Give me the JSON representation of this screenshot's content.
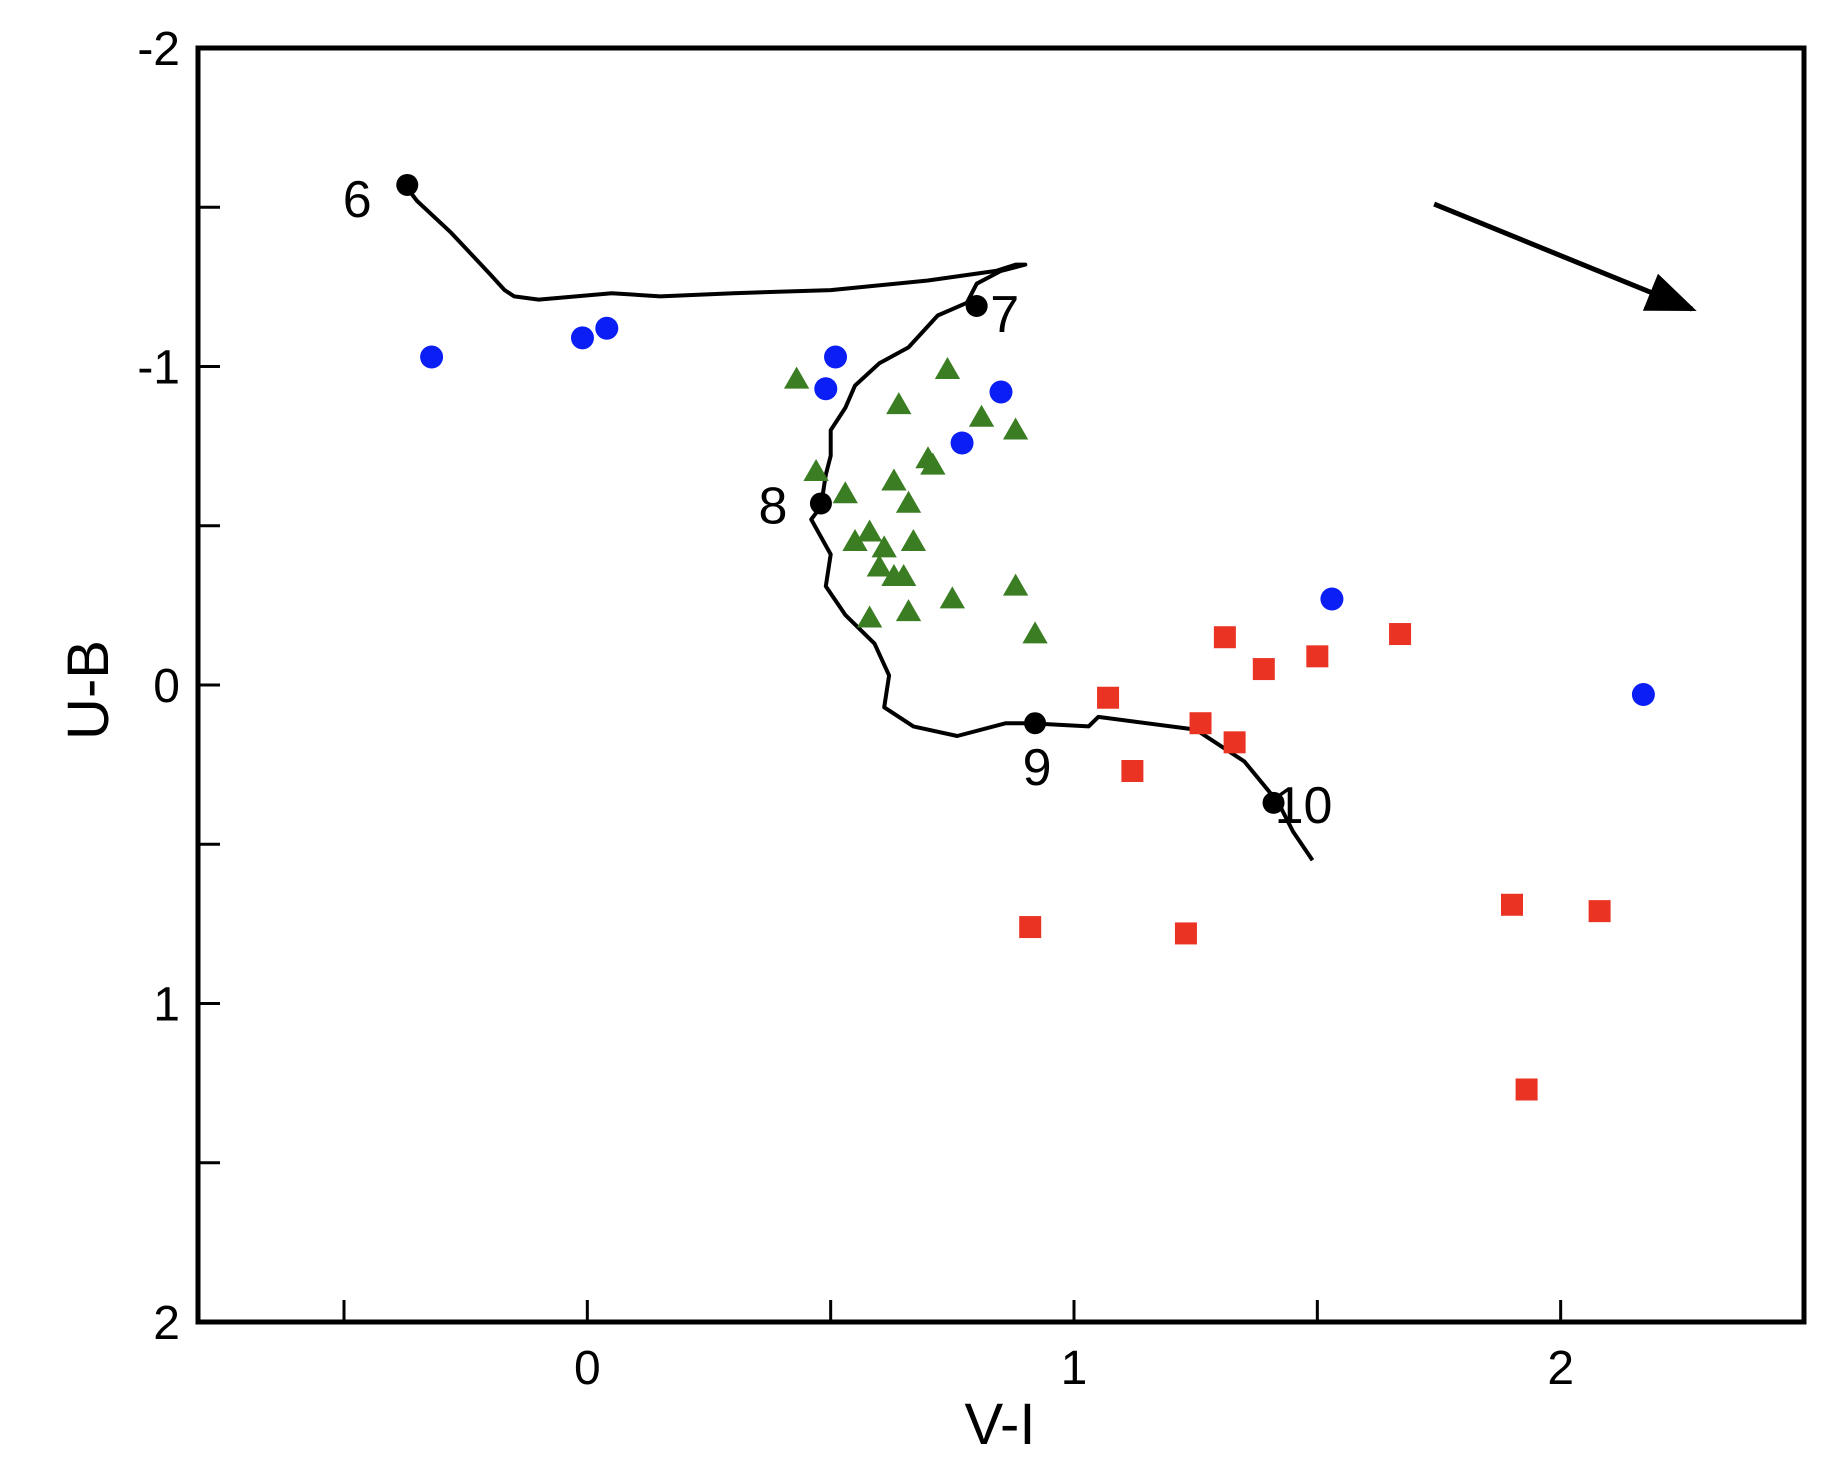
{
  "chart_data": {
    "type": "scatter",
    "xlabel": "V-I",
    "ylabel": "U-B",
    "xlim": [
      -0.8,
      2.5
    ],
    "ylim": [
      2,
      -2
    ],
    "y_inverted": true,
    "x_ticks": [
      -0.5,
      0,
      0.5,
      1,
      1.5,
      2
    ],
    "x_tick_labels": [
      "0",
      "1",
      "2"
    ],
    "x_tick_label_values": [
      0,
      1,
      2
    ],
    "y_ticks": [
      -2,
      -1.5,
      -1,
      -0.5,
      0,
      0.5,
      1,
      1.5,
      2
    ],
    "y_tick_labels": [
      "-2",
      "-1",
      "0",
      "1",
      "2"
    ],
    "y_tick_label_values": [
      -2,
      -1,
      0,
      1,
      2
    ],
    "grid": false,
    "legend": "none",
    "colors": {
      "blue_circles": "#0a1ef5",
      "green_triangles": "#3a7d22",
      "red_squares": "#ea3323",
      "track": "#000000"
    },
    "series": [
      {
        "marker": "circle",
        "color": "#0a1ef5",
        "points": [
          [
            -0.32,
            -1.03
          ],
          [
            -0.01,
            -1.09
          ],
          [
            0.04,
            -1.12
          ],
          [
            0.51,
            -1.03
          ],
          [
            0.49,
            -0.93
          ],
          [
            0.85,
            -0.92
          ],
          [
            0.77,
            -0.76
          ],
          [
            1.53,
            -0.27
          ],
          [
            2.17,
            0.03
          ]
        ]
      },
      {
        "marker": "triangle",
        "color": "#3a7d22",
        "points": [
          [
            0.43,
            -0.96
          ],
          [
            0.74,
            -0.99
          ],
          [
            0.64,
            -0.88
          ],
          [
            0.81,
            -0.84
          ],
          [
            0.88,
            -0.8
          ],
          [
            0.7,
            -0.71
          ],
          [
            0.71,
            -0.69
          ],
          [
            0.47,
            -0.67
          ],
          [
            0.63,
            -0.64
          ],
          [
            0.53,
            -0.6
          ],
          [
            0.66,
            -0.57
          ],
          [
            0.58,
            -0.48
          ],
          [
            0.55,
            -0.45
          ],
          [
            0.61,
            -0.43
          ],
          [
            0.67,
            -0.45
          ],
          [
            0.6,
            -0.37
          ],
          [
            0.63,
            -0.34
          ],
          [
            0.65,
            -0.34
          ],
          [
            0.88,
            -0.31
          ],
          [
            0.75,
            -0.27
          ],
          [
            0.66,
            -0.23
          ],
          [
            0.58,
            -0.21
          ],
          [
            0.92,
            -0.16
          ]
        ]
      },
      {
        "marker": "square",
        "color": "#ea3323",
        "points": [
          [
            1.31,
            -0.15
          ],
          [
            1.67,
            -0.16
          ],
          [
            1.5,
            -0.09
          ],
          [
            1.39,
            -0.05
          ],
          [
            1.07,
            0.04
          ],
          [
            1.26,
            0.12
          ],
          [
            1.33,
            0.18
          ],
          [
            1.12,
            0.27
          ],
          [
            0.91,
            0.76
          ],
          [
            1.23,
            0.78
          ],
          [
            1.9,
            0.69
          ],
          [
            2.08,
            0.71
          ],
          [
            1.93,
            1.27
          ]
        ]
      }
    ],
    "track": {
      "points": [
        [
          -0.38,
          -1.58
        ],
        [
          -0.35,
          -1.52
        ],
        [
          -0.28,
          -1.42
        ],
        [
          -0.2,
          -1.29
        ],
        [
          -0.17,
          -1.24
        ],
        [
          -0.15,
          -1.22
        ],
        [
          -0.1,
          -1.21
        ],
        [
          0.05,
          -1.23
        ],
        [
          0.15,
          -1.22
        ],
        [
          0.3,
          -1.23
        ],
        [
          0.5,
          -1.24
        ],
        [
          0.7,
          -1.27
        ],
        [
          0.84,
          -1.3
        ],
        [
          0.88,
          -1.32
        ],
        [
          0.9,
          -1.32
        ],
        [
          0.85,
          -1.3
        ],
        [
          0.8,
          -1.26
        ],
        [
          0.78,
          -1.2
        ],
        [
          0.72,
          -1.16
        ],
        [
          0.66,
          -1.06
        ],
        [
          0.6,
          -1.01
        ],
        [
          0.55,
          -0.94
        ],
        [
          0.53,
          -0.87
        ],
        [
          0.5,
          -0.8
        ],
        [
          0.5,
          -0.72
        ],
        [
          0.49,
          -0.66
        ],
        [
          0.48,
          -0.56
        ],
        [
          0.46,
          -0.52
        ],
        [
          0.5,
          -0.41
        ],
        [
          0.49,
          -0.31
        ],
        [
          0.53,
          -0.22
        ],
        [
          0.59,
          -0.13
        ],
        [
          0.62,
          -0.03
        ],
        [
          0.61,
          0.07
        ],
        [
          0.67,
          0.13
        ],
        [
          0.76,
          0.16
        ],
        [
          0.86,
          0.12
        ],
        [
          0.91,
          0.12
        ],
        [
          1.03,
          0.13
        ],
        [
          1.05,
          0.1
        ],
        [
          1.25,
          0.14
        ],
        [
          1.35,
          0.24
        ],
        [
          1.42,
          0.37
        ],
        [
          1.45,
          0.46
        ],
        [
          1.49,
          0.55
        ]
      ],
      "age_markers": [
        {
          "label": "6",
          "x": -0.37,
          "y": -1.57
        },
        {
          "label": "7",
          "x": 0.8,
          "y": -1.19
        },
        {
          "label": "8",
          "x": 0.48,
          "y": -0.57
        },
        {
          "label": "9",
          "x": 0.92,
          "y": 0.12
        },
        {
          "label": "10",
          "x": 1.41,
          "y": 0.37
        }
      ]
    },
    "reddening_vector": {
      "from": [
        1.74,
        -1.51
      ],
      "to": [
        2.27,
        -1.18
      ]
    }
  }
}
